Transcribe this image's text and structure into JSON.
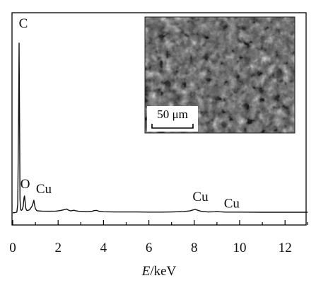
{
  "chart_data": {
    "type": "line",
    "title": "",
    "xlabel_italic": "E",
    "xlabel_unit": "/keV",
    "ylabel": "",
    "xlim": [
      0,
      13
    ],
    "xticks": [
      "0",
      "2",
      "4",
      "6",
      "8",
      "10",
      "12"
    ],
    "grid": false,
    "series": [
      {
        "x": [
          0.0,
          0.1,
          0.18,
          0.22,
          0.26,
          0.28,
          0.3,
          0.32,
          0.35,
          0.38,
          0.42,
          0.46,
          0.5,
          0.52,
          0.55,
          0.58,
          0.62,
          0.68,
          0.75,
          0.8,
          0.85,
          0.9,
          0.93,
          0.96,
          1.0,
          1.05,
          1.1,
          1.3,
          1.6,
          1.9,
          2.1,
          2.3,
          2.38,
          2.45,
          2.55,
          2.7,
          2.78,
          2.9,
          3.1,
          3.3,
          3.5,
          3.6,
          3.7,
          3.8,
          4.0,
          4.5,
          5.0,
          5.5,
          6.0,
          6.5,
          7.0,
          7.5,
          7.8,
          7.95,
          8.05,
          8.15,
          8.3,
          8.6,
          8.9,
          9.0,
          9.1,
          9.4,
          10.0,
          11.0,
          12.0,
          13.0
        ],
        "y": [
          0.1,
          0.2,
          0.5,
          5,
          55,
          100,
          60,
          8,
          2,
          1.5,
          2,
          4,
          9,
          10,
          6,
          2.5,
          1.5,
          1.5,
          2,
          3,
          4,
          6,
          7.5,
          5,
          2.5,
          1.5,
          1.2,
          1.1,
          1.0,
          1.1,
          1.4,
          2,
          2.3,
          1.7,
          1.2,
          1.6,
          1.3,
          1.0,
          0.9,
          0.8,
          1.0,
          1.4,
          1.5,
          1.0,
          0.7,
          0.6,
          0.6,
          0.6,
          0.5,
          0.5,
          0.6,
          0.8,
          1.2,
          1.8,
          2.1,
          1.6,
          1.0,
          0.6,
          0.7,
          0.9,
          0.7,
          0.5,
          0.5,
          0.4,
          0.4,
          0.4
        ]
      }
    ],
    "annotations": [
      {
        "text": "C",
        "x": 0.28
      },
      {
        "text": "O",
        "x": 0.52
      },
      {
        "text": "Cu",
        "x": 0.93
      },
      {
        "text": "Cu",
        "x": 8.05
      },
      {
        "text": "Cu",
        "x": 8.9
      }
    ]
  },
  "inset": {
    "scale_bar_label": "50 μm"
  }
}
